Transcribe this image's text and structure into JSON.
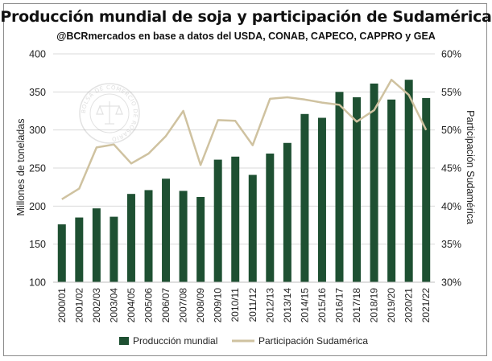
{
  "chart_data": {
    "type": "bar+line",
    "title": "Producción mundial de soja y participación de Sudamérica",
    "subtitle": "@BCRmercados  en base a datos del USDA, CONAB, CAPECO, CAPPRO y GEA",
    "categories": [
      "2000/01",
      "2001/02",
      "2002/03",
      "2003/04",
      "2004/05",
      "2005/06",
      "2006/07",
      "2007/08",
      "2008/09",
      "2009/10",
      "2010/11",
      "2011/12",
      "2012/13",
      "2013/14",
      "2014/15",
      "2015/16",
      "2016/17",
      "2017/18",
      "2018/19",
      "2019/20",
      "2020/21",
      "2021/22"
    ],
    "series": [
      {
        "name": "Producción mundial",
        "type": "bar",
        "axis": "left",
        "color": "#1e5032",
        "values": [
          176,
          185,
          197,
          186,
          216,
          221,
          236,
          220,
          212,
          261,
          265,
          241,
          269,
          283,
          321,
          316,
          350,
          343,
          361,
          340,
          366,
          342
        ]
      },
      {
        "name": "Participación Sudamérica",
        "type": "line",
        "axis": "right",
        "color": "#cfc2a0",
        "values": [
          40.9,
          42.3,
          47.7,
          48.1,
          45.6,
          46.9,
          49.2,
          52.5,
          45.4,
          51.3,
          51.2,
          48.0,
          54.1,
          54.3,
          54.0,
          53.6,
          53.3,
          51.1,
          52.6,
          56.6,
          54.6,
          50.0
        ]
      }
    ],
    "ylabel": "Millones de toneladas",
    "y2label": "Participación Sudamérica",
    "ylim": [
      100,
      400
    ],
    "y2lim": [
      30,
      60
    ],
    "yticks": [
      "100",
      "150",
      "200",
      "250",
      "300",
      "350",
      "400"
    ],
    "y2ticks": [
      "30%",
      "35%",
      "40%",
      "45%",
      "50%",
      "55%",
      "60%"
    ],
    "grid": true,
    "legend": "bottom"
  },
  "watermark": {
    "text": "BOLSA DE COMERCIO DE ROSARIO"
  }
}
